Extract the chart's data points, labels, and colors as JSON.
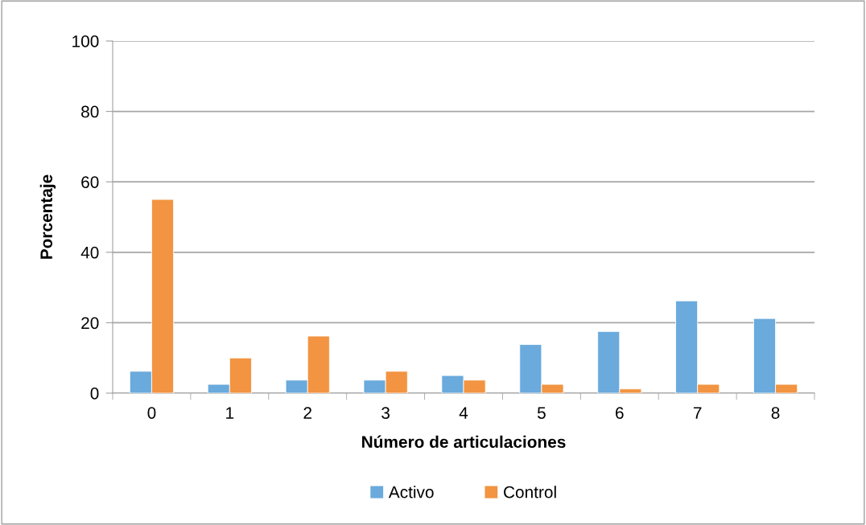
{
  "chart_data": {
    "type": "bar",
    "xlabel": "Número de articulaciones",
    "ylabel": "Porcentaje",
    "categories": [
      "0",
      "1",
      "2",
      "3",
      "4",
      "5",
      "6",
      "7",
      "8"
    ],
    "series": [
      {
        "name": "Activo",
        "color": "#6aaadc",
        "values": [
          6.2,
          2.5,
          3.7,
          3.7,
          5.0,
          13.8,
          17.5,
          26.2,
          21.2
        ]
      },
      {
        "name": "Control",
        "color": "#f29441",
        "values": [
          55,
          10,
          16.2,
          6.2,
          3.7,
          2.5,
          1.2,
          2.5,
          2.5
        ]
      }
    ],
    "ylim": [
      0,
      100
    ],
    "yticks": [
      0,
      20,
      40,
      60,
      80,
      100
    ],
    "grid": "y",
    "legend": "bottom"
  }
}
